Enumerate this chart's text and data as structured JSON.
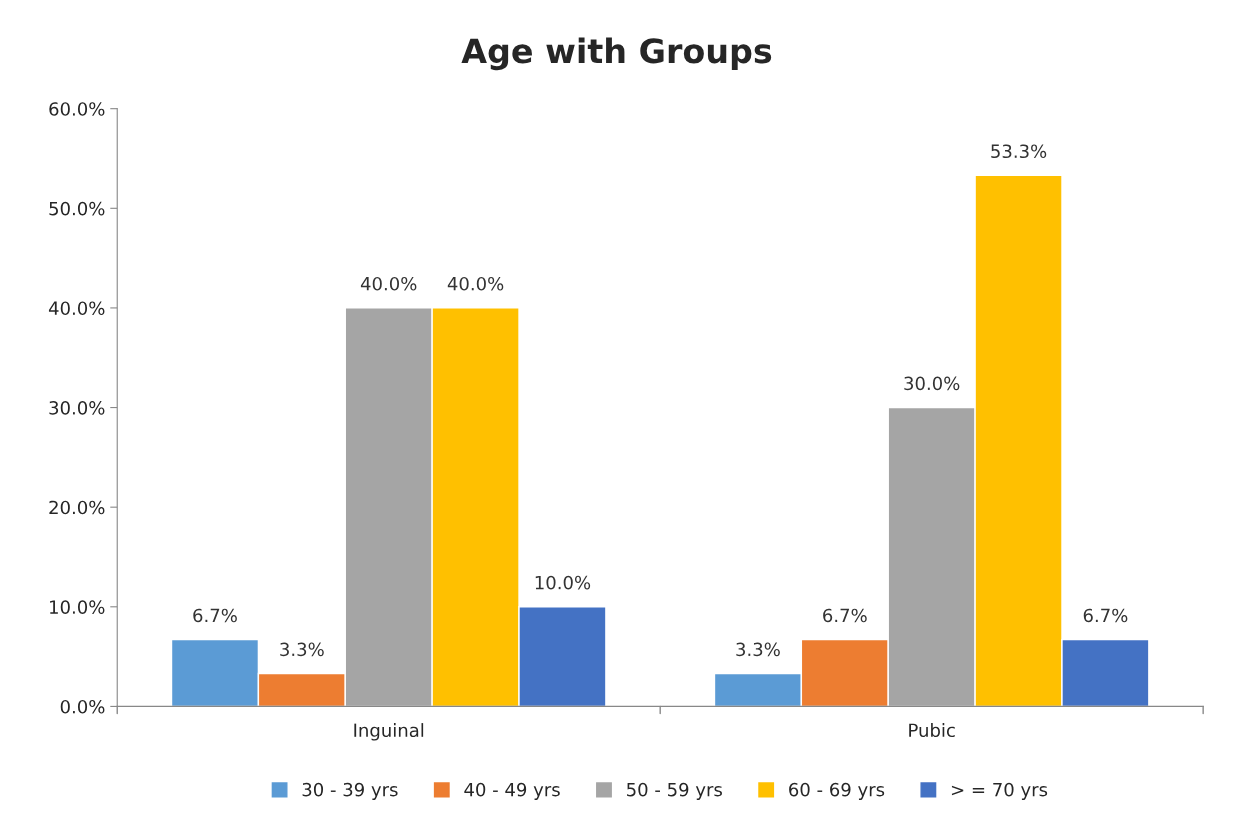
{
  "chart_data": {
    "type": "bar",
    "title": "Age with Groups",
    "categories": [
      "Inguinal",
      "Pubic"
    ],
    "series": [
      {
        "name": "30 - 39 yrs",
        "color": "#5b9bd5",
        "values": [
          6.7,
          3.3
        ],
        "value_labels": [
          "6.7%",
          "3.3%"
        ]
      },
      {
        "name": "40 - 49 yrs",
        "color": "#ed7d31",
        "values": [
          3.3,
          6.7
        ],
        "value_labels": [
          "3.3%",
          "6.7%"
        ]
      },
      {
        "name": "50 - 59 yrs",
        "color": "#a5a5a5",
        "values": [
          40.0,
          30.0
        ],
        "value_labels": [
          "40.0%",
          "30.0%"
        ]
      },
      {
        "name": "60 - 69 yrs",
        "color": "#ffc000",
        "values": [
          40.0,
          53.3
        ],
        "value_labels": [
          "40.0%",
          "53.3%"
        ]
      },
      {
        "name": "> = 70 yrs",
        "color": "#4472c4",
        "values": [
          10.0,
          6.7
        ],
        "value_labels": [
          "10.0%",
          "6.7%"
        ]
      }
    ],
    "ylim": [
      0,
      60
    ],
    "yticks": [
      {
        "value": 0,
        "label": "0.0%"
      },
      {
        "value": 10,
        "label": "10.0%"
      },
      {
        "value": 20,
        "label": "20.0%"
      },
      {
        "value": 30,
        "label": "30.0%"
      },
      {
        "value": 40,
        "label": "40.0%"
      },
      {
        "value": 50,
        "label": "50.0%"
      },
      {
        "value": 60,
        "label": "60.0%"
      }
    ],
    "grid": false,
    "legend": "bottom"
  }
}
